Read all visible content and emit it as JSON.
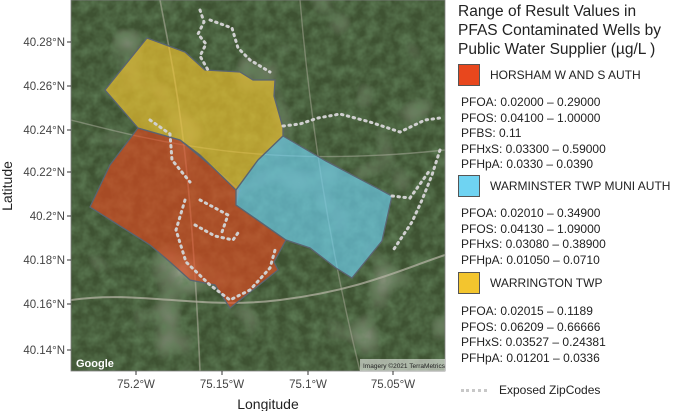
{
  "axes": {
    "xlabel": "Longitude",
    "ylabel": "Latitude",
    "x_ticks": [
      "75.2°W",
      "75.15°W",
      "75.1°W",
      "75.05°W"
    ],
    "y_ticks": [
      "40.28°N",
      "40.26°N",
      "40.24°N",
      "40.22°N",
      "40.2°N",
      "40.18°N",
      "40.16°N",
      "40.14°N"
    ]
  },
  "map": {
    "google_logo": "Google",
    "attribution": "Imagery ©2021 TerraMetrics",
    "xlim": [
      -75.233,
      -75.03
    ],
    "ylim": [
      40.131,
      40.292
    ]
  },
  "legend": {
    "title": "Range of Result Values in\nPFAS Contaminated Wells by\nPublic Water Supplier (µg/L )",
    "suppliers": [
      {
        "name": "HORSHAM W AND S AUTH",
        "color": "#e8471d",
        "values": [
          "PFOA: 0.02000 – 0.29000",
          "PFOS: 0.04100 – 1.00000",
          "PFBS: 0.11",
          "PFHxS: 0.03300 – 0.59000",
          "PFHpA: 0.0330 – 0.0390"
        ]
      },
      {
        "name": "WARMINSTER TWP MUNI AUTH",
        "color": "#6fd3f2",
        "values": [
          "PFOA: 0.02010 – 0.34900",
          "PFOS: 0.04130 – 1.09000",
          "PFHxS: 0.03080 – 0.38900",
          "PFHpA: 0.01050 – 0.0710"
        ]
      },
      {
        "name": "WARRINGTON TWP",
        "color": "#f3c52e",
        "values": [
          "PFOA: 0.02015 – 0.1189",
          "PFOS: 0.06209 – 0.66666",
          "PFHxS: 0.03527 – 0.24381",
          "PFHpA: 0.01201 – 0.0336"
        ]
      }
    ],
    "zip_label": "Exposed ZipCodes",
    "zip_color": "#c8c8c8"
  }
}
